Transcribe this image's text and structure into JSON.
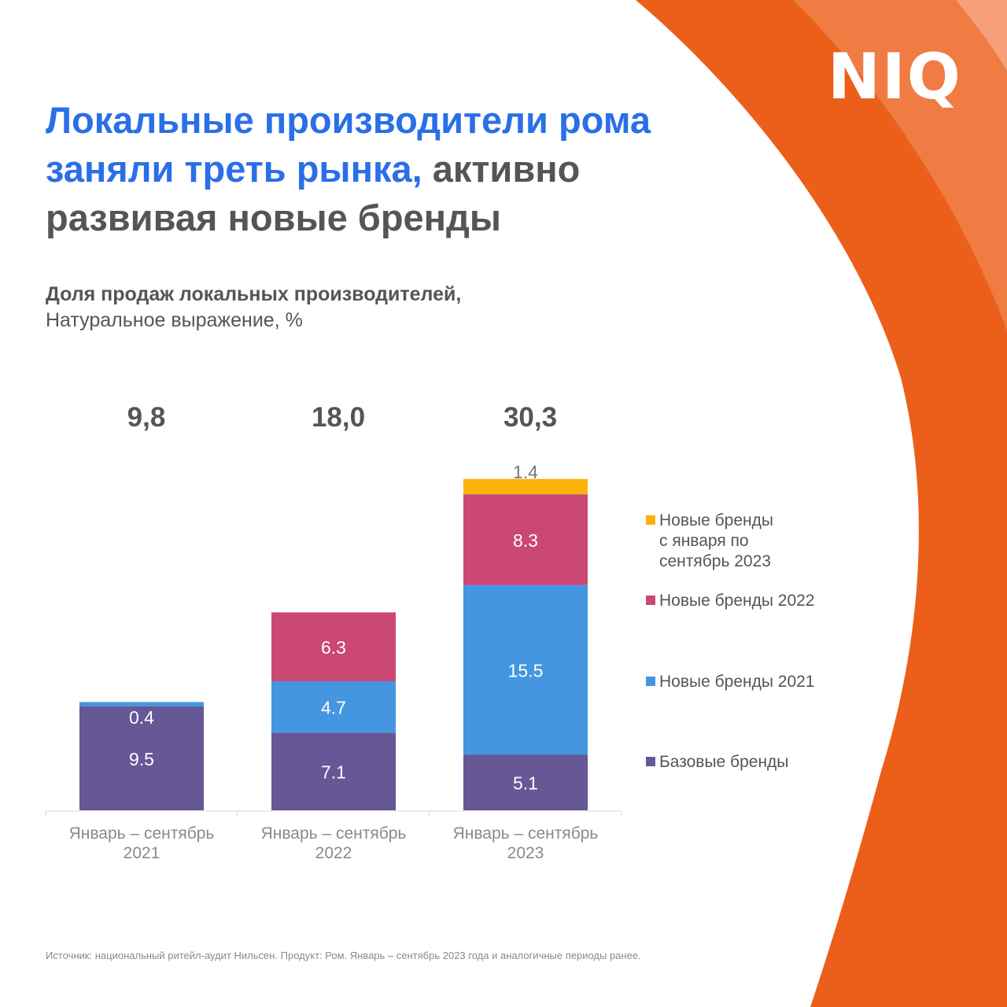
{
  "logo": "NIQ",
  "title": {
    "highlight": "Локальные производители рома заняли треть рынка,",
    "rest": " активно развивая новые бренды"
  },
  "subtitle": {
    "bold": "Доля продаж локальных производителей,",
    "normal": "Натуральное выражение, %"
  },
  "colors": {
    "accent_blue": "#2a6fe8",
    "orange": "#ec5f1a",
    "orange_mid": "#f07b43",
    "orange_light": "#f5a07a"
  },
  "chart_data": {
    "type": "bar",
    "stacked": true,
    "categories": [
      "Январь – сентябрь 2021",
      "Январь – сентябрь 2022",
      "Январь – сентябрь 2023"
    ],
    "category_lines": [
      [
        "Январь – сентябрь",
        "2021"
      ],
      [
        "Январь – сентябрь",
        "2022"
      ],
      [
        "Январь – сентябрь",
        "2023"
      ]
    ],
    "totals": [
      "9,8",
      "18,0",
      "30,3"
    ],
    "series": [
      {
        "name": "Базовые бренды",
        "color": "#665796",
        "values": [
          9.5,
          7.1,
          5.1
        ]
      },
      {
        "name": "Новые бренды 2021",
        "color": "#4596e0",
        "values": [
          0.4,
          4.7,
          15.5
        ]
      },
      {
        "name": "Новые бренды 2022",
        "color": "#cb4776",
        "values": [
          null,
          6.3,
          8.3
        ]
      },
      {
        "name": "Новые бренды с января по сентябрь 2023",
        "legend_lines": [
          "Новые бренды",
          "с января по",
          "сентябрь 2023"
        ],
        "color": "#fbb20a",
        "values": [
          null,
          null,
          1.4
        ]
      }
    ],
    "legend_position": "right",
    "ylim": [
      0,
      32
    ]
  },
  "source": "Источник: национальный ритейл-аудит Нильсен. Продукт: Ром. Январь – сентябрь 2023 года и аналогичные периоды ранее."
}
